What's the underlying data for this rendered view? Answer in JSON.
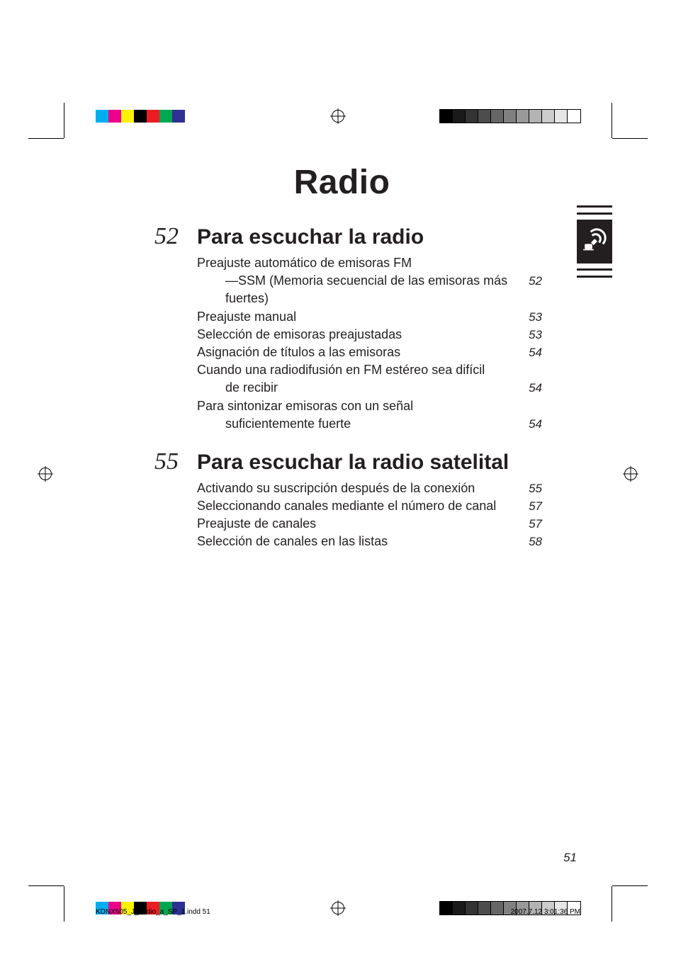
{
  "chapter_title": "Radio",
  "sections": [
    {
      "num": "52",
      "title": "Para escuchar la radio",
      "entries": [
        {
          "label": "Preajuste automático de emisoras FM",
          "sub": "—SSM (Memoria secuencial de las emisoras más fuertes)",
          "page": "52"
        },
        {
          "label": "Preajuste manual",
          "page": "53"
        },
        {
          "label": "Selección de emisoras preajustadas",
          "page": "53"
        },
        {
          "label": "Asignación de títulos a las emisoras",
          "page": "54"
        },
        {
          "label": "Cuando una radiodifusión en FM estéreo sea difícil",
          "sub": "de recibir",
          "page": "54"
        },
        {
          "label": "Para sintonizar emisoras con un señal",
          "sub": "suficientemente fuerte",
          "page": "54"
        }
      ]
    },
    {
      "num": "55",
      "title": "Para escuchar la radio satelital",
      "entries": [
        {
          "label": "Activando su suscripción después de la conexión",
          "page": "55"
        },
        {
          "label": "Seleccionando canales mediante el número de canal",
          "page": "57"
        },
        {
          "label": "Preajuste de canales",
          "page": "57"
        },
        {
          "label": "Selección de canales en las listas",
          "page": "58"
        }
      ]
    }
  ],
  "page_number": "51",
  "footer_file": "KDNX505_J_audio_a_SP_1.indd   51",
  "footer_timestamp": "2007.7.12   3:01:36 PM",
  "cal_shades_black": [
    "#000000",
    "#1a1a1a",
    "#333333",
    "#4d4d4d",
    "#666666",
    "#808080",
    "#999999",
    "#b3b3b3",
    "#cccccc",
    "#e6e6e6",
    "#ffffff"
  ],
  "cal_shades_black_outline": true,
  "cal_colors": [
    "#00aeef",
    "#ec008c",
    "#fff200",
    "#000000",
    "#ed1c24",
    "#00a651",
    "#2e3192"
  ]
}
